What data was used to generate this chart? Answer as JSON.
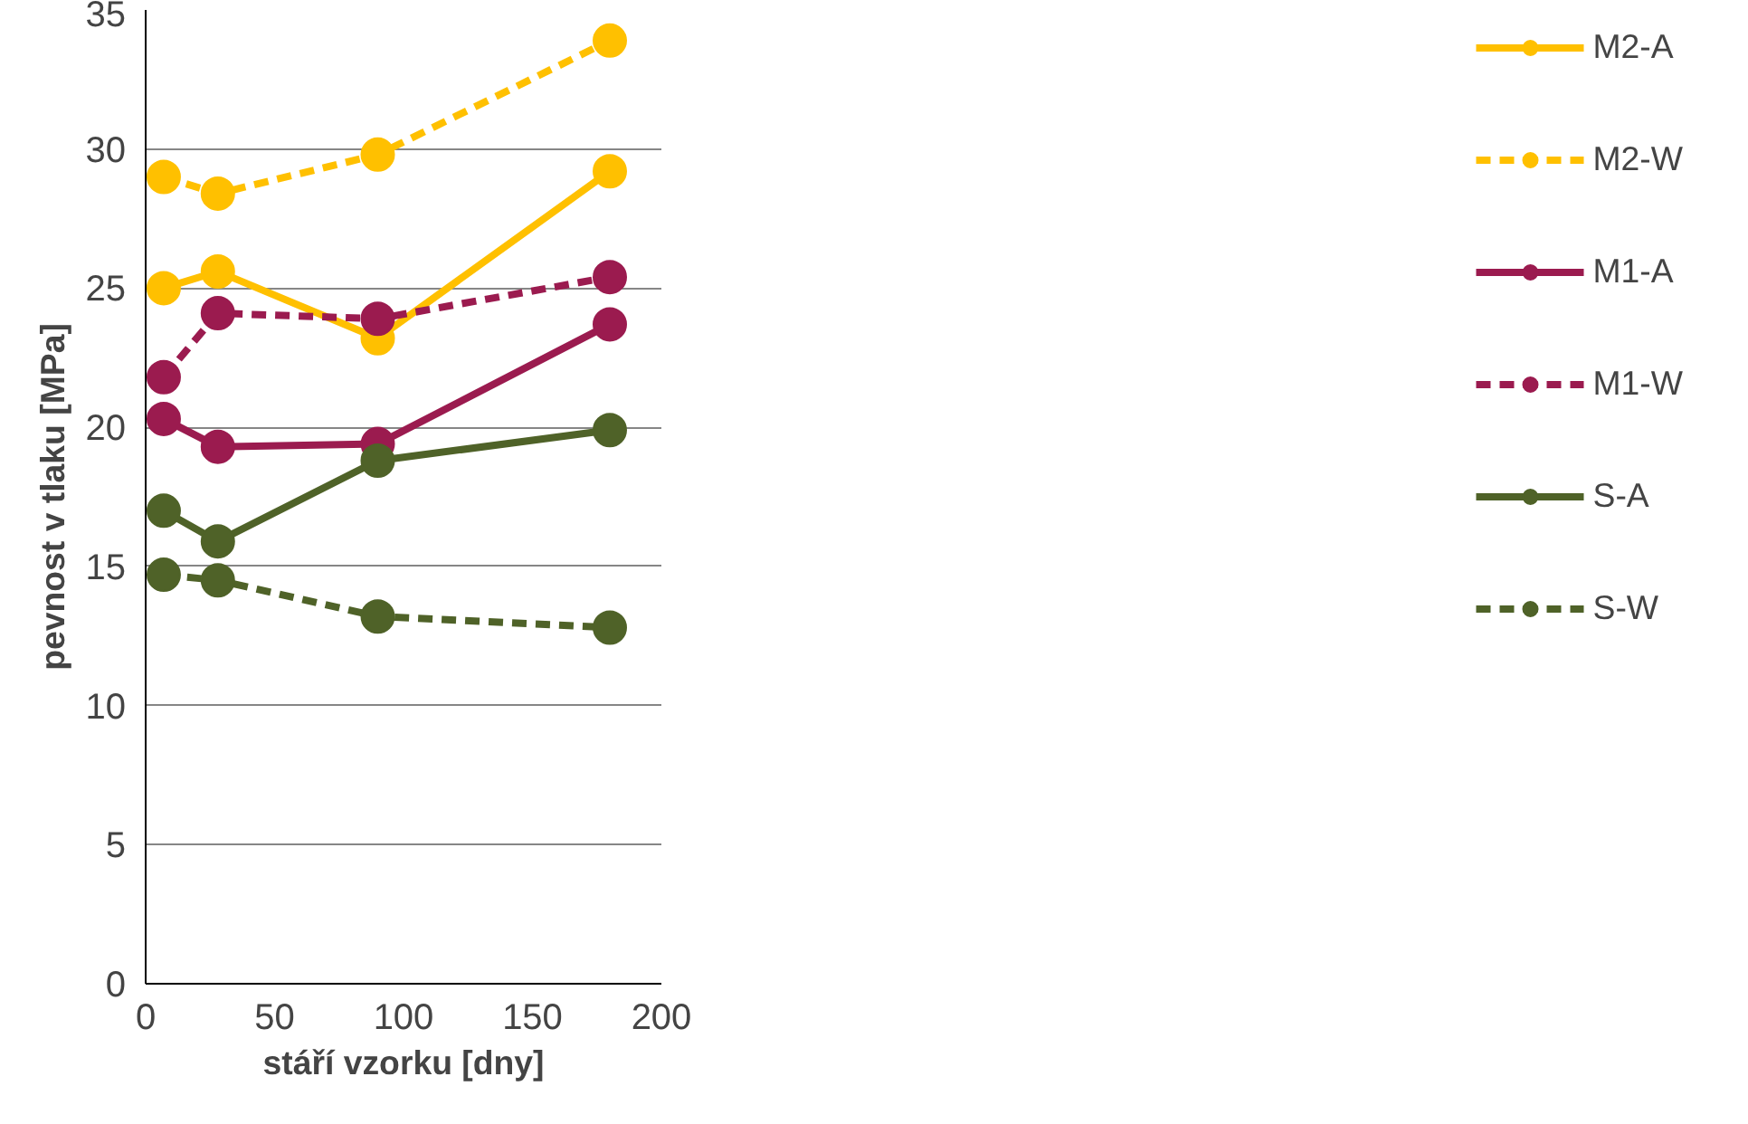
{
  "chart_data": {
    "type": "line",
    "xlabel": "stáří vzorku [dny]",
    "ylabel": "pevnost v tlaku [MPa]",
    "xlim": [
      0,
      200
    ],
    "xticks": [
      0,
      50,
      100,
      150,
      200
    ],
    "ylim": [
      0,
      35
    ],
    "yticks": [
      0,
      5,
      10,
      15,
      20,
      25,
      30,
      35
    ],
    "x": [
      7,
      28,
      90,
      180
    ],
    "grid": "y",
    "legend": "right",
    "marker": "circle",
    "series": [
      {
        "name": "M2-A",
        "color": "#ffc000",
        "line_style": "solid",
        "values": [
          25.0,
          25.6,
          23.2,
          29.2
        ]
      },
      {
        "name": "M2-W",
        "color": "#ffc000",
        "line_style": "dashed",
        "values": [
          29.0,
          28.4,
          29.8,
          33.9
        ]
      },
      {
        "name": "M1-A",
        "color": "#9b1b4f",
        "line_style": "solid",
        "values": [
          20.3,
          19.3,
          19.4,
          23.7
        ]
      },
      {
        "name": "M1-W",
        "color": "#9b1b4f",
        "line_style": "dashed",
        "values": [
          21.8,
          24.1,
          23.9,
          25.4
        ]
      },
      {
        "name": "S-A",
        "color": "#4f6228",
        "line_style": "solid",
        "values": [
          17.0,
          15.9,
          18.8,
          19.9
        ]
      },
      {
        "name": "S-W",
        "color": "#4f6228",
        "line_style": "dashed",
        "values": [
          14.7,
          14.5,
          13.2,
          12.8
        ]
      }
    ]
  }
}
